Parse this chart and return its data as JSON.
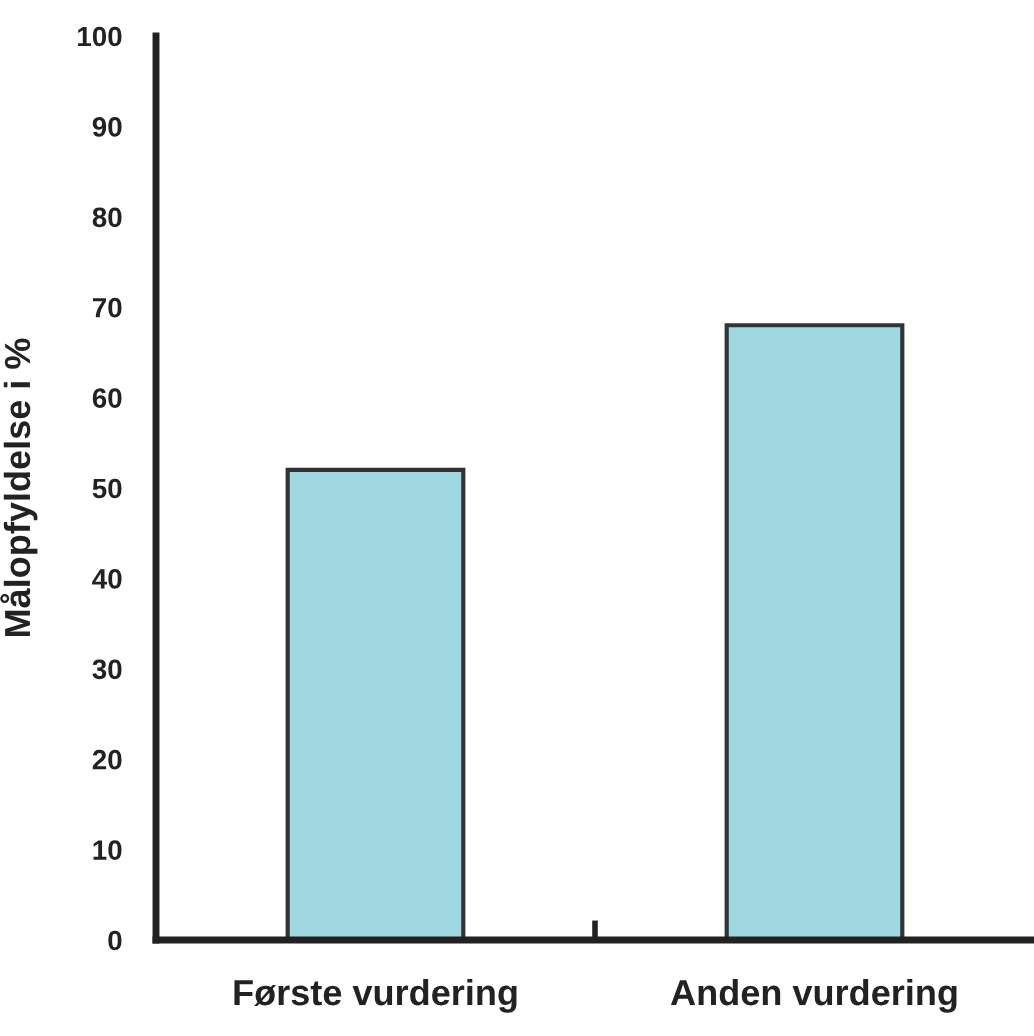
{
  "chart_data": {
    "type": "bar",
    "ylabel": "Målopfyldelse i %",
    "categories": [
      "Første vurdering",
      "Anden vurdering"
    ],
    "values": [
      52,
      68
    ],
    "color": "#a0d8e2",
    "ylim": [
      0,
      100
    ],
    "yticks": [
      0,
      10,
      20,
      30,
      40,
      50,
      60,
      70,
      80,
      90,
      100
    ],
    "grid": false
  }
}
